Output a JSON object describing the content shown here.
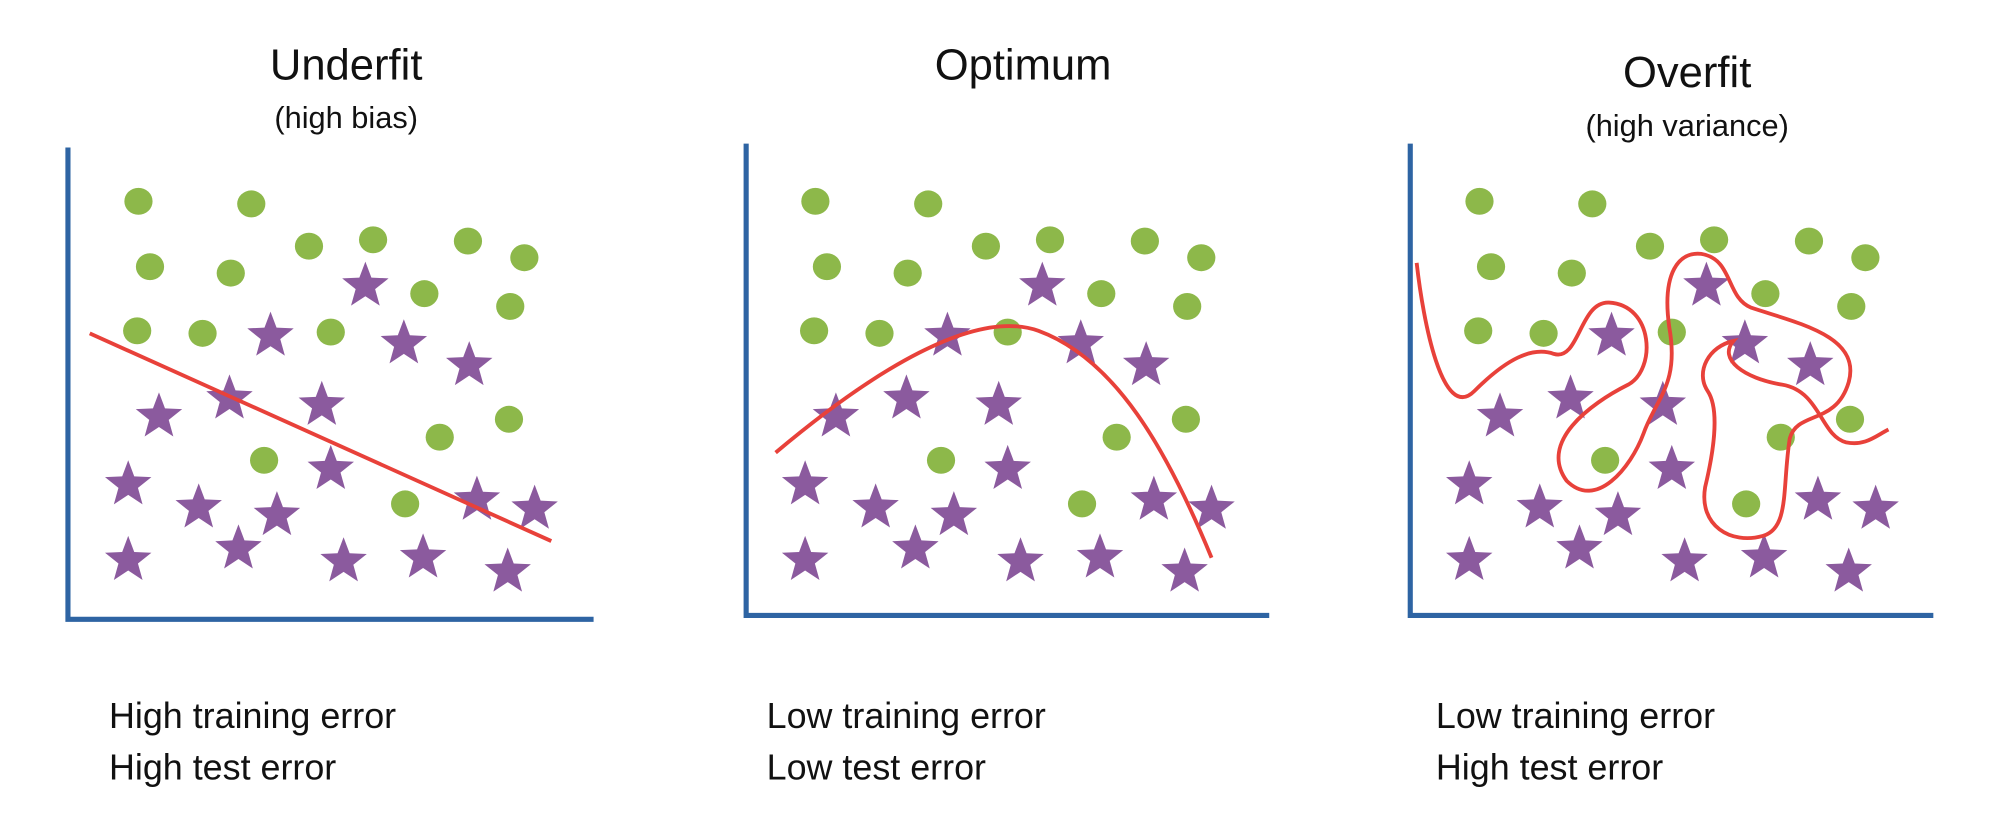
{
  "panels": [
    {
      "title": "Underfit",
      "subtitle": "(high bias)",
      "notes": [
        "High training error",
        "High test error"
      ]
    },
    {
      "title": "Optimum",
      "notes": [
        "Low training error",
        "Low test error"
      ]
    },
    {
      "title": "Overfit",
      "subtitle": "(high variance)",
      "notes": [
        "Low training error",
        "High test error"
      ]
    }
  ]
}
